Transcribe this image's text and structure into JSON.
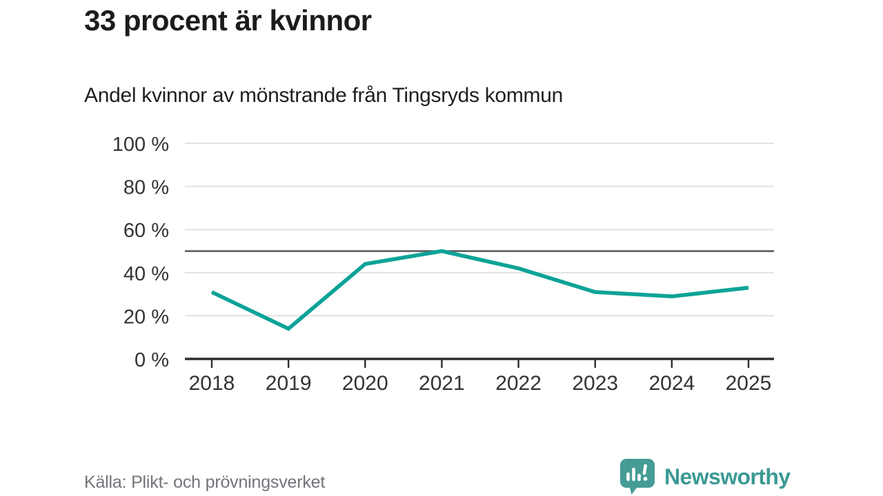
{
  "title": "33 procent är kvinnor",
  "subtitle": "Andel kvinnor av mönstrande från Tingsryds kommun",
  "footer": {
    "source": "Källa: Plikt- och prövningsverket",
    "brand": "Newsworthy"
  },
  "colors": {
    "line": "#0da398",
    "grid": "#e2e2e2",
    "axis": "#2d2d2d",
    "reference_line": "#54545a",
    "tick_text": "#333333",
    "title_text": "#1c1c1a",
    "source_text": "#73737c",
    "brand_teal": "#459c96",
    "brand_text": "#3b9a94"
  },
  "chart_data": {
    "type": "line",
    "x": [
      2018,
      2019,
      2020,
      2021,
      2022,
      2023,
      2024,
      2025
    ],
    "series": [
      {
        "name": "Andel kvinnor av mönstrande",
        "values": [
          31,
          14,
          44,
          50,
          42,
          31,
          29,
          33
        ]
      }
    ],
    "title": "33 procent är kvinnor",
    "subtitle": "Andel kvinnor av mönstrande från Tingsryds kommun",
    "xlabel": "",
    "ylabel": "",
    "ylim": [
      0,
      100
    ],
    "yticks": [
      0,
      20,
      40,
      60,
      80,
      100
    ],
    "ytick_suffix": " %",
    "reference_line": 50,
    "grid": true,
    "legend": "none"
  }
}
